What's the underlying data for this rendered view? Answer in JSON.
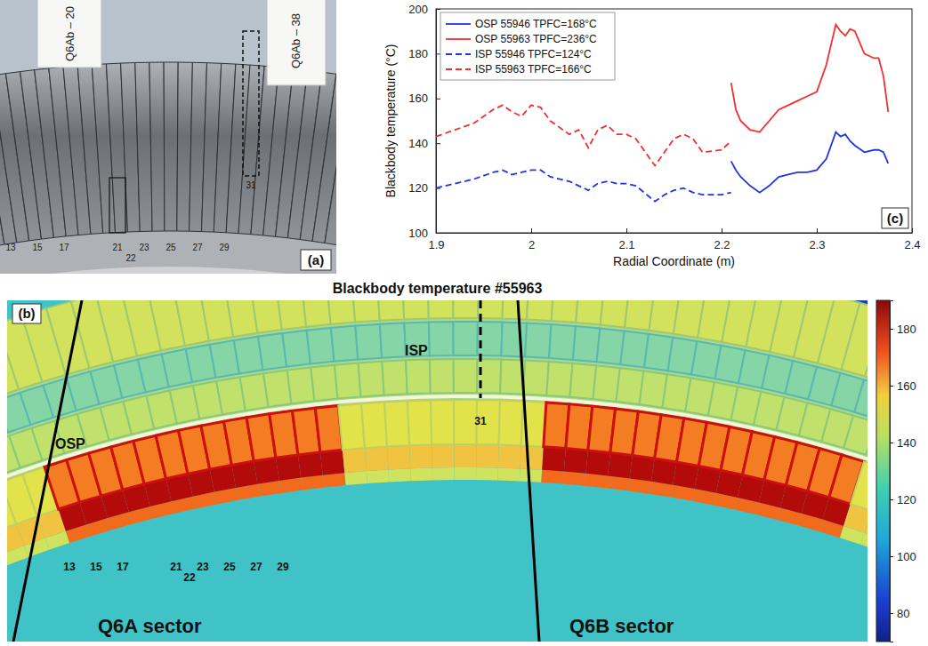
{
  "chart_data": [
    {
      "type": "image",
      "panel_label": "(a)",
      "card_labels": [
        "Q6Ab – 20",
        "Q6Ab – 38"
      ],
      "tile_labels": [
        "13",
        "15",
        "17",
        "21",
        "22",
        "23",
        "25",
        "27",
        "29"
      ],
      "marked_tile": "31"
    },
    {
      "type": "image",
      "panel_label": "(b)",
      "title": "Blackbody temperature #55963",
      "annotations": [
        "OSP",
        "ISP"
      ],
      "tile_labels": [
        "13",
        "15",
        "17",
        "21",
        "22",
        "23",
        "25",
        "27",
        "29"
      ],
      "marked_tile": "31",
      "sector_labels": [
        "Q6A sector",
        "Q6B sector"
      ],
      "colorbar_range": [
        70,
        190
      ],
      "colorbar_ticks": [
        80,
        100,
        120,
        140,
        160,
        180
      ]
    },
    {
      "type": "line",
      "panel_label": "(c)",
      "xlabel": "Radial Coordinate (m)",
      "ylabel": "Blackbody temperature (°C)",
      "xlim": [
        1.9,
        2.4
      ],
      "xticks": [
        1.9,
        2,
        2.1,
        2.2,
        2.3,
        2.4
      ],
      "ylim": [
        100,
        200
      ],
      "yticks": [
        100,
        120,
        140,
        160,
        180,
        200
      ],
      "legend": "upper left",
      "series": [
        {
          "name": "OSP 55946 TPFC=168°C",
          "color": "#2036e0",
          "line_style": "solid",
          "x": [
            2.21,
            2.215,
            2.22,
            2.23,
            2.24,
            2.25,
            2.26,
            2.27,
            2.28,
            2.29,
            2.3,
            2.31,
            2.32,
            2.325,
            2.33,
            2.335,
            2.34,
            2.35,
            2.36,
            2.365,
            2.37,
            2.375
          ],
          "values": [
            132,
            128,
            125,
            121,
            118,
            121,
            125,
            126,
            127,
            127,
            128,
            133,
            145,
            143,
            144,
            141,
            139,
            136,
            137,
            137,
            136,
            131
          ]
        },
        {
          "name": "OSP 55963 TPFC=236°C",
          "color": "#ee3030",
          "line_style": "solid",
          "x": [
            2.21,
            2.215,
            2.22,
            2.23,
            2.24,
            2.25,
            2.26,
            2.27,
            2.28,
            2.29,
            2.3,
            2.31,
            2.32,
            2.325,
            2.33,
            2.335,
            2.34,
            2.35,
            2.36,
            2.365,
            2.37,
            2.375
          ],
          "values": [
            167,
            155,
            150,
            146,
            145,
            150,
            155,
            157,
            159,
            161,
            163,
            175,
            193,
            190,
            188,
            191,
            190,
            180,
            178,
            178,
            170,
            154
          ]
        },
        {
          "name": "ISP 55946 TPFC=124°C",
          "color": "#2036e0",
          "line_style": "dashed",
          "x": [
            1.9,
            1.92,
            1.94,
            1.96,
            1.97,
            1.98,
            1.99,
            2,
            2.01,
            2.02,
            2.04,
            2.05,
            2.06,
            2.07,
            2.08,
            2.09,
            2.1,
            2.11,
            2.13,
            2.14,
            2.15,
            2.16,
            2.17,
            2.18,
            2.2,
            2.21
          ],
          "values": [
            120,
            122,
            124,
            127,
            128,
            126,
            127,
            128,
            128,
            125,
            123,
            121,
            119,
            122,
            123,
            122,
            122,
            121,
            114,
            117,
            119,
            120,
            118,
            117,
            117,
            118
          ]
        },
        {
          "name": "ISP 55963 TPFC=166°C",
          "color": "#ee3030",
          "line_style": "dashed",
          "x": [
            1.9,
            1.92,
            1.94,
            1.96,
            1.97,
            1.98,
            1.99,
            2,
            2.01,
            2.02,
            2.04,
            2.05,
            2.06,
            2.07,
            2.08,
            2.09,
            2.1,
            2.11,
            2.13,
            2.14,
            2.15,
            2.16,
            2.17,
            2.18,
            2.2,
            2.21
          ],
          "values": [
            143,
            146,
            149,
            155,
            157,
            154,
            152,
            157,
            156,
            150,
            144,
            146,
            138,
            146,
            148,
            144,
            144,
            142,
            130,
            136,
            142,
            144,
            142,
            136,
            137,
            141
          ]
        }
      ]
    }
  ]
}
